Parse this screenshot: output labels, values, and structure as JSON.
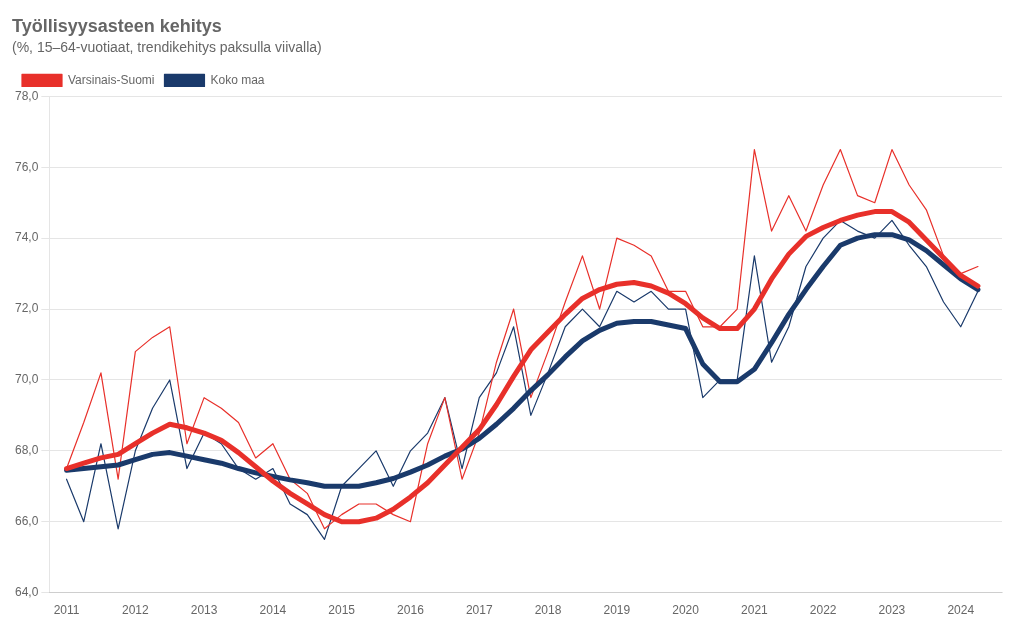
{
  "chart_data": {
    "type": "line",
    "title": "Työllisyysasteen kehitys",
    "subtitle": "(%, 15–64-vuotiaat, trendikehitys paksulla viivalla)",
    "x": [
      2011.0,
      2011.25,
      2011.5,
      2011.75,
      2012.0,
      2012.25,
      2012.5,
      2012.75,
      2013.0,
      2013.25,
      2013.5,
      2013.75,
      2014.0,
      2014.25,
      2014.5,
      2014.75,
      2015.0,
      2015.25,
      2015.5,
      2015.75,
      2016.0,
      2016.25,
      2016.5,
      2016.75,
      2017.0,
      2017.25,
      2017.5,
      2017.75,
      2018.0,
      2018.25,
      2018.5,
      2018.75,
      2019.0,
      2019.25,
      2019.5,
      2019.75,
      2020.0,
      2020.25,
      2020.5,
      2020.75,
      2021.0,
      2021.25,
      2021.5,
      2021.75,
      2022.0,
      2022.25,
      2022.5,
      2022.75,
      2023.0,
      2023.25,
      2023.5,
      2023.75,
      2024.0,
      2024.25
    ],
    "series": [
      {
        "name": "Varsinais-Suomi",
        "color": "#e8302a",
        "line_style": "thin",
        "values": [
          67.5,
          68.8,
          70.2,
          67.2,
          70.8,
          71.2,
          71.5,
          68.2,
          69.5,
          69.2,
          68.8,
          67.8,
          68.2,
          67.2,
          66.8,
          65.8,
          66.2,
          66.5,
          66.5,
          66.2,
          66.0,
          68.2,
          69.5,
          67.2,
          68.5,
          70.5,
          72.0,
          69.5,
          70.8,
          72.2,
          73.5,
          72.0,
          74.0,
          73.8,
          73.5,
          72.5,
          72.5,
          71.5,
          71.5,
          72.0,
          76.5,
          74.2,
          75.2,
          74.2,
          75.5,
          76.5,
          75.2,
          75.0,
          76.5,
          75.5,
          74.8,
          73.5,
          73.0,
          73.2
        ]
      },
      {
        "name": "Koko maa",
        "color": "#1a3a6b",
        "line_style": "thin",
        "values": [
          67.2,
          66.0,
          68.2,
          65.8,
          68.0,
          69.2,
          70.0,
          67.5,
          68.5,
          68.2,
          67.5,
          67.2,
          67.5,
          66.5,
          66.2,
          65.5,
          67.0,
          67.5,
          68.0,
          67.0,
          68.0,
          68.5,
          69.5,
          67.5,
          69.5,
          70.2,
          71.5,
          69.0,
          70.2,
          71.5,
          72.0,
          71.5,
          72.5,
          72.2,
          72.5,
          72.0,
          72.0,
          69.5,
          70.0,
          70.0,
          73.5,
          70.5,
          71.5,
          73.2,
          74.0,
          74.5,
          74.2,
          74.0,
          74.5,
          73.8,
          73.2,
          72.2,
          71.5,
          72.5
        ]
      },
      {
        "color": "#e8302a",
        "line_style": "thick",
        "values": [
          67.5,
          67.65,
          67.8,
          67.9,
          68.2,
          68.5,
          68.75,
          68.65,
          68.5,
          68.3,
          67.95,
          67.55,
          67.15,
          66.8,
          66.5,
          66.2,
          66.0,
          66.0,
          66.1,
          66.35,
          66.7,
          67.1,
          67.6,
          68.1,
          68.6,
          69.3,
          70.1,
          70.85,
          71.35,
          71.85,
          72.3,
          72.55,
          72.7,
          72.75,
          72.65,
          72.45,
          72.15,
          71.75,
          71.45,
          71.45,
          72.0,
          72.85,
          73.55,
          74.05,
          74.3,
          74.5,
          74.65,
          74.75,
          74.75,
          74.45,
          73.95,
          73.45,
          72.95,
          72.65
        ]
      },
      {
        "color": "#1a3a6b",
        "line_style": "thick",
        "values": [
          67.45,
          67.5,
          67.55,
          67.6,
          67.75,
          67.9,
          67.95,
          67.85,
          67.75,
          67.65,
          67.5,
          67.38,
          67.28,
          67.18,
          67.1,
          67.0,
          67.0,
          67.0,
          67.1,
          67.22,
          67.4,
          67.6,
          67.85,
          68.05,
          68.35,
          68.75,
          69.2,
          69.7,
          70.15,
          70.65,
          71.1,
          71.4,
          71.6,
          71.65,
          71.65,
          71.55,
          71.45,
          70.45,
          69.95,
          69.95,
          70.3,
          71.05,
          71.85,
          72.55,
          73.2,
          73.8,
          74.0,
          74.1,
          74.1,
          73.95,
          73.65,
          73.25,
          72.85,
          72.55
        ]
      }
    ],
    "xlim": [
      2010.75,
      2024.6
    ],
    "xticks": [
      2011,
      2012,
      2013,
      2014,
      2015,
      2016,
      2017,
      2018,
      2019,
      2020,
      2021,
      2022,
      2023,
      2024
    ],
    "ylim": [
      64.0,
      78.0
    ],
    "yticks": [
      {
        "value": 64.0,
        "label": "64,0"
      },
      {
        "value": 66.0,
        "label": "66,0"
      },
      {
        "value": 68.0,
        "label": "68,0"
      },
      {
        "value": 70.0,
        "label": "70,0"
      },
      {
        "value": 72.0,
        "label": "72,0"
      },
      {
        "value": 74.0,
        "label": "74,0"
      },
      {
        "value": 76.0,
        "label": "76,0"
      },
      {
        "value": 78.0,
        "label": "78,0"
      }
    ],
    "grid": "y",
    "legend": "upper left"
  }
}
